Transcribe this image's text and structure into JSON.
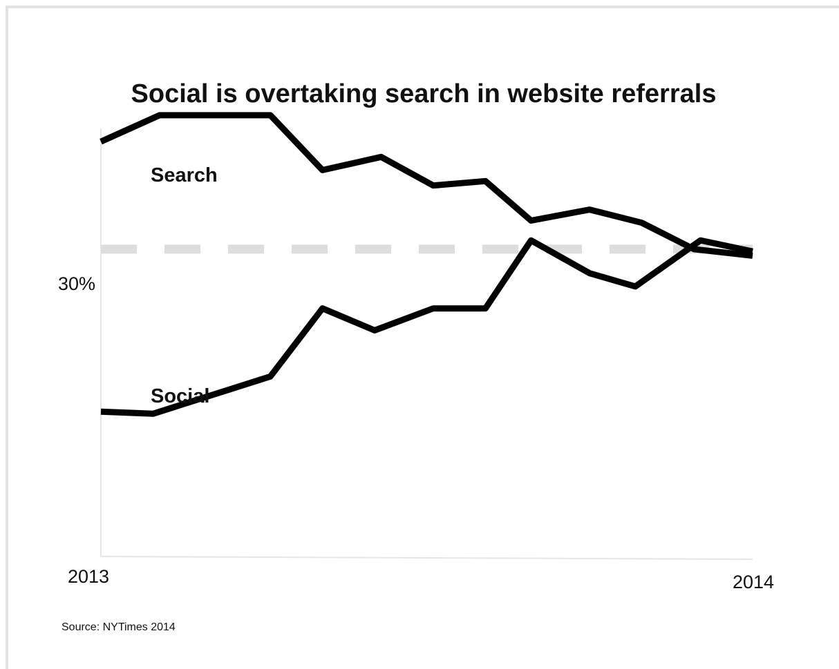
{
  "chart_data": {
    "type": "line",
    "title": "Social is overtaking search in website referrals",
    "x_ticks": [
      "2013",
      "2014"
    ],
    "y_ticks": [
      "30%"
    ],
    "reference_line": {
      "label": "30%",
      "y": 30,
      "style": "dashed",
      "color": "#dddddd"
    },
    "y_range": [
      16,
      35.5
    ],
    "x_range": [
      0,
      1
    ],
    "grid": false,
    "series": [
      {
        "name": "Search",
        "color": "#000000",
        "points": [
          [
            0.0,
            34.9
          ],
          [
            0.09,
            36.1
          ],
          [
            0.26,
            36.1
          ],
          [
            0.34,
            33.6
          ],
          [
            0.43,
            34.2
          ],
          [
            0.51,
            32.9
          ],
          [
            0.59,
            33.1
          ],
          [
            0.66,
            31.3
          ],
          [
            0.75,
            31.8
          ],
          [
            0.83,
            31.2
          ],
          [
            0.91,
            30.0
          ],
          [
            1.0,
            29.7
          ]
        ]
      },
      {
        "name": "Social",
        "color": "#000000",
        "points": [
          [
            0.0,
            22.6
          ],
          [
            0.08,
            22.5
          ],
          [
            0.26,
            24.2
          ],
          [
            0.34,
            27.3
          ],
          [
            0.42,
            26.3
          ],
          [
            0.51,
            27.3
          ],
          [
            0.59,
            27.3
          ],
          [
            0.66,
            30.4
          ],
          [
            0.75,
            28.9
          ],
          [
            0.82,
            28.3
          ],
          [
            0.92,
            30.4
          ],
          [
            1.0,
            29.9
          ]
        ]
      }
    ]
  },
  "source": "Source: NYTimes 2014"
}
